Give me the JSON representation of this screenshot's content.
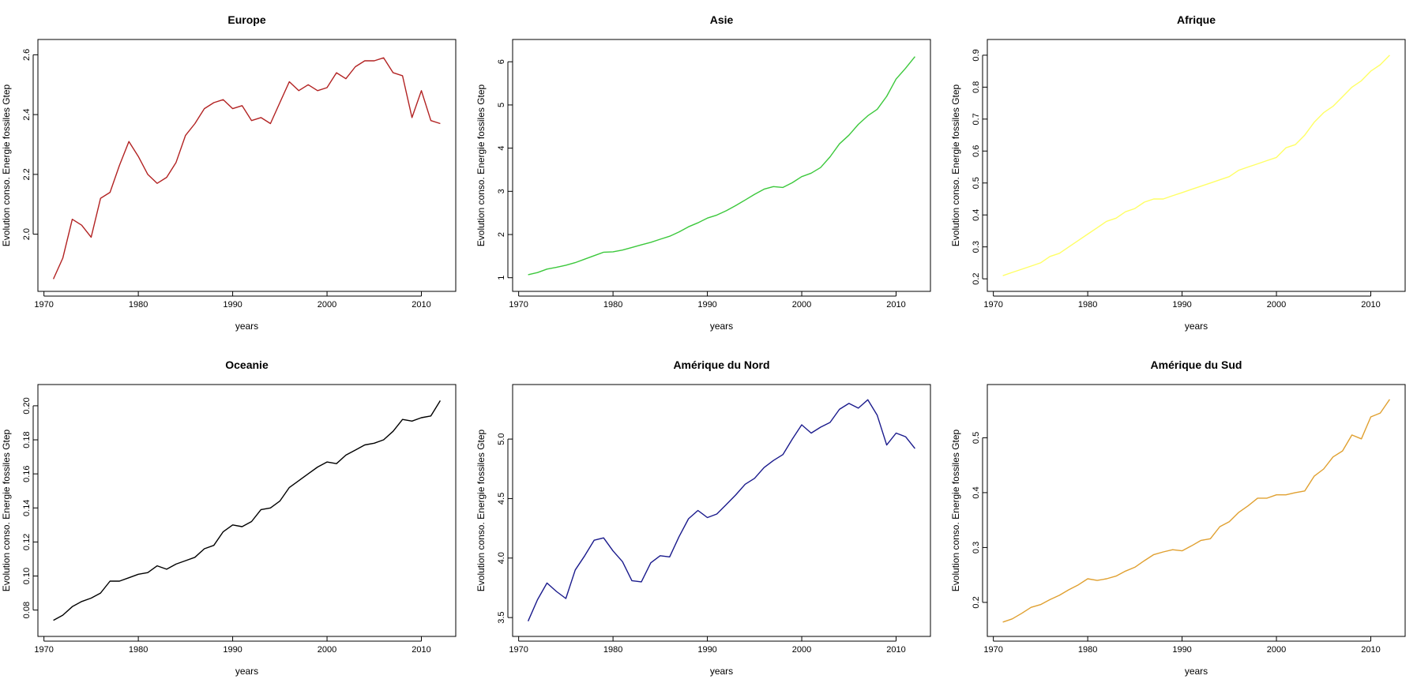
{
  "chart_data": [
    {
      "type": "line",
      "title": "Europe",
      "xlabel": "years",
      "ylabel": "Evolution conso. Energie fossiles Gtep",
      "color": "#B22222",
      "xlim": [
        1971,
        2012
      ],
      "ylim": [
        1.84,
        2.62
      ],
      "xticks": [
        1970,
        1980,
        1990,
        2000,
        2010
      ],
      "yticks": [
        2.0,
        2.2,
        2.4,
        2.6
      ],
      "ytick_labels": [
        "2.0",
        "2.2",
        "2.4",
        "2.6"
      ],
      "x": [
        1971,
        1972,
        1973,
        1974,
        1975,
        1976,
        1977,
        1978,
        1979,
        1980,
        1981,
        1982,
        1983,
        1984,
        1985,
        1986,
        1987,
        1988,
        1989,
        1990,
        1991,
        1992,
        1993,
        1994,
        1995,
        1996,
        1997,
        1998,
        1999,
        2000,
        2001,
        2002,
        2003,
        2004,
        2005,
        2006,
        2007,
        2008,
        2009,
        2010,
        2011,
        2012
      ],
      "values": [
        1.85,
        1.92,
        2.05,
        2.03,
        1.99,
        2.12,
        2.14,
        2.23,
        2.31,
        2.26,
        2.2,
        2.17,
        2.19,
        2.24,
        2.33,
        2.37,
        2.42,
        2.44,
        2.45,
        2.42,
        2.43,
        2.38,
        2.39,
        2.37,
        2.44,
        2.51,
        2.48,
        2.5,
        2.48,
        2.49,
        2.54,
        2.52,
        2.56,
        2.58,
        2.58,
        2.59,
        2.54,
        2.53,
        2.39,
        2.48,
        2.38,
        2.37
      ]
    },
    {
      "type": "line",
      "title": "Asie",
      "xlabel": "years",
      "ylabel": "Evolution conso. Energie fossiles Gtep",
      "color": "#3CC83C",
      "xlim": [
        1971,
        2012
      ],
      "ylim": [
        0.9,
        6.3
      ],
      "xticks": [
        1970,
        1980,
        1990,
        2000,
        2010
      ],
      "yticks": [
        1,
        2,
        3,
        4,
        5,
        6
      ],
      "ytick_labels": [
        "1",
        "2",
        "3",
        "4",
        "5",
        "6"
      ],
      "x": [
        1971,
        1972,
        1973,
        1974,
        1975,
        1976,
        1977,
        1978,
        1979,
        1980,
        1981,
        1982,
        1983,
        1984,
        1985,
        1986,
        1987,
        1988,
        1989,
        1990,
        1991,
        1992,
        1993,
        1994,
        1995,
        1996,
        1997,
        1998,
        1999,
        2000,
        2001,
        2002,
        2003,
        2004,
        2005,
        2006,
        2007,
        2008,
        2009,
        2010,
        2011,
        2012
      ],
      "values": [
        1.07,
        1.12,
        1.2,
        1.24,
        1.29,
        1.35,
        1.43,
        1.51,
        1.59,
        1.6,
        1.64,
        1.7,
        1.76,
        1.82,
        1.89,
        1.96,
        2.06,
        2.18,
        2.27,
        2.38,
        2.45,
        2.55,
        2.67,
        2.8,
        2.93,
        3.05,
        3.11,
        3.09,
        3.2,
        3.34,
        3.42,
        3.55,
        3.8,
        4.1,
        4.3,
        4.55,
        4.75,
        4.9,
        5.2,
        5.6,
        5.85,
        6.12
      ]
    },
    {
      "type": "line",
      "title": "Afrique",
      "xlabel": "years",
      "ylabel": "Evolution conso. Energie fossiles Gtep",
      "color": "#FFFF66",
      "xlim": [
        1971,
        2012
      ],
      "ylim": [
        0.19,
        0.92
      ],
      "xticks": [
        1970,
        1980,
        1990,
        2000,
        2010
      ],
      "yticks": [
        0.2,
        0.3,
        0.4,
        0.5,
        0.6,
        0.7,
        0.8,
        0.9
      ],
      "ytick_labels": [
        "0.2",
        "0.3",
        "0.4",
        "0.5",
        "0.6",
        "0.7",
        "0.8",
        "0.9"
      ],
      "x": [
        1971,
        1972,
        1973,
        1974,
        1975,
        1976,
        1977,
        1978,
        1979,
        1980,
        1981,
        1982,
        1983,
        1984,
        1985,
        1986,
        1987,
        1988,
        1989,
        1990,
        1991,
        1992,
        1993,
        1994,
        1995,
        1996,
        1997,
        1998,
        1999,
        2000,
        2001,
        2002,
        2003,
        2004,
        2005,
        2006,
        2007,
        2008,
        2009,
        2010,
        2011,
        2012
      ],
      "values": [
        0.21,
        0.22,
        0.23,
        0.24,
        0.25,
        0.27,
        0.28,
        0.3,
        0.32,
        0.34,
        0.36,
        0.38,
        0.39,
        0.41,
        0.42,
        0.44,
        0.45,
        0.45,
        0.46,
        0.47,
        0.48,
        0.49,
        0.5,
        0.51,
        0.52,
        0.54,
        0.55,
        0.56,
        0.57,
        0.58,
        0.61,
        0.62,
        0.65,
        0.69,
        0.72,
        0.74,
        0.77,
        0.8,
        0.82,
        0.85,
        0.87,
        0.9
      ]
    },
    {
      "type": "line",
      "title": "Oceanie",
      "xlabel": "years",
      "ylabel": "Evolution conso. Energie fossiles Gtep",
      "color": "#000000",
      "xlim": [
        1971,
        2012
      ],
      "ylim": [
        0.07,
        0.207
      ],
      "xticks": [
        1970,
        1980,
        1990,
        2000,
        2010
      ],
      "yticks": [
        0.08,
        0.1,
        0.12,
        0.14,
        0.16,
        0.18,
        0.2
      ],
      "ytick_labels": [
        "0.08",
        "0.10",
        "0.12",
        "0.14",
        "0.16",
        "0.18",
        "0.20"
      ],
      "x": [
        1971,
        1972,
        1973,
        1974,
        1975,
        1976,
        1977,
        1978,
        1979,
        1980,
        1981,
        1982,
        1983,
        1984,
        1985,
        1986,
        1987,
        1988,
        1989,
        1990,
        1991,
        1992,
        1993,
        1994,
        1995,
        1996,
        1997,
        1998,
        1999,
        2000,
        2001,
        2002,
        2003,
        2004,
        2005,
        2006,
        2007,
        2008,
        2009,
        2010,
        2011,
        2012
      ],
      "values": [
        0.074,
        0.077,
        0.082,
        0.085,
        0.087,
        0.09,
        0.097,
        0.097,
        0.099,
        0.101,
        0.102,
        0.106,
        0.104,
        0.107,
        0.109,
        0.111,
        0.116,
        0.118,
        0.126,
        0.13,
        0.129,
        0.132,
        0.139,
        0.14,
        0.144,
        0.152,
        0.156,
        0.16,
        0.164,
        0.167,
        0.166,
        0.171,
        0.174,
        0.177,
        0.178,
        0.18,
        0.185,
        0.192,
        0.191,
        0.193,
        0.194,
        0.203
      ]
    },
    {
      "type": "line",
      "title": "Amérique du Nord",
      "xlabel": "years",
      "ylabel": "Evolution conso. Energie fossiles Gtep",
      "color": "#1A1A8C",
      "xlim": [
        1971,
        2012
      ],
      "ylim": [
        3.42,
        5.38
      ],
      "xticks": [
        1970,
        1980,
        1990,
        2000,
        2010
      ],
      "yticks": [
        3.5,
        4.0,
        4.5,
        5.0
      ],
      "ytick_labels": [
        "3.5",
        "4.0",
        "4.5",
        "5.0"
      ],
      "x": [
        1971,
        1972,
        1973,
        1974,
        1975,
        1976,
        1977,
        1978,
        1979,
        1980,
        1981,
        1982,
        1983,
        1984,
        1985,
        1986,
        1987,
        1988,
        1989,
        1990,
        1991,
        1992,
        1993,
        1994,
        1995,
        1996,
        1997,
        1998,
        1999,
        2000,
        2001,
        2002,
        2003,
        2004,
        2005,
        2006,
        2007,
        2008,
        2009,
        2010,
        2011,
        2012
      ],
      "values": [
        3.47,
        3.65,
        3.79,
        3.72,
        3.66,
        3.9,
        4.02,
        4.15,
        4.17,
        4.06,
        3.97,
        3.81,
        3.8,
        3.96,
        4.02,
        4.01,
        4.18,
        4.33,
        4.4,
        4.34,
        4.37,
        4.45,
        4.53,
        4.62,
        4.67,
        4.76,
        4.82,
        4.87,
        5.0,
        5.12,
        5.05,
        5.1,
        5.14,
        5.25,
        5.3,
        5.26,
        5.33,
        5.2,
        4.95,
        5.05,
        5.02,
        4.92
      ]
    },
    {
      "type": "line",
      "title": "Amérique du Sud",
      "xlabel": "years",
      "ylabel": "Evolution conso. Energie fossiles Gtep",
      "color": "#E0A030",
      "xlim": [
        1971,
        2012
      ],
      "ylim": [
        0.155,
        0.58
      ],
      "xticks": [
        1970,
        1980,
        1990,
        2000,
        2010
      ],
      "yticks": [
        0.2,
        0.3,
        0.4,
        0.5
      ],
      "ytick_labels": [
        "0.2",
        "0.3",
        "0.4",
        "0.5"
      ],
      "x": [
        1971,
        1972,
        1973,
        1974,
        1975,
        1976,
        1977,
        1978,
        1979,
        1980,
        1981,
        1982,
        1983,
        1984,
        1985,
        1986,
        1987,
        1988,
        1989,
        1990,
        1991,
        1992,
        1993,
        1994,
        1995,
        1996,
        1997,
        1998,
        1999,
        2000,
        2001,
        2002,
        2003,
        2004,
        2005,
        2006,
        2007,
        2008,
        2009,
        2010,
        2011,
        2012
      ],
      "values": [
        0.164,
        0.17,
        0.18,
        0.191,
        0.196,
        0.205,
        0.213,
        0.223,
        0.232,
        0.243,
        0.24,
        0.243,
        0.248,
        0.257,
        0.264,
        0.276,
        0.287,
        0.292,
        0.296,
        0.294,
        0.303,
        0.313,
        0.316,
        0.338,
        0.347,
        0.364,
        0.376,
        0.39,
        0.39,
        0.396,
        0.396,
        0.4,
        0.403,
        0.43,
        0.443,
        0.465,
        0.476,
        0.505,
        0.498,
        0.538,
        0.545,
        0.57
      ]
    }
  ]
}
